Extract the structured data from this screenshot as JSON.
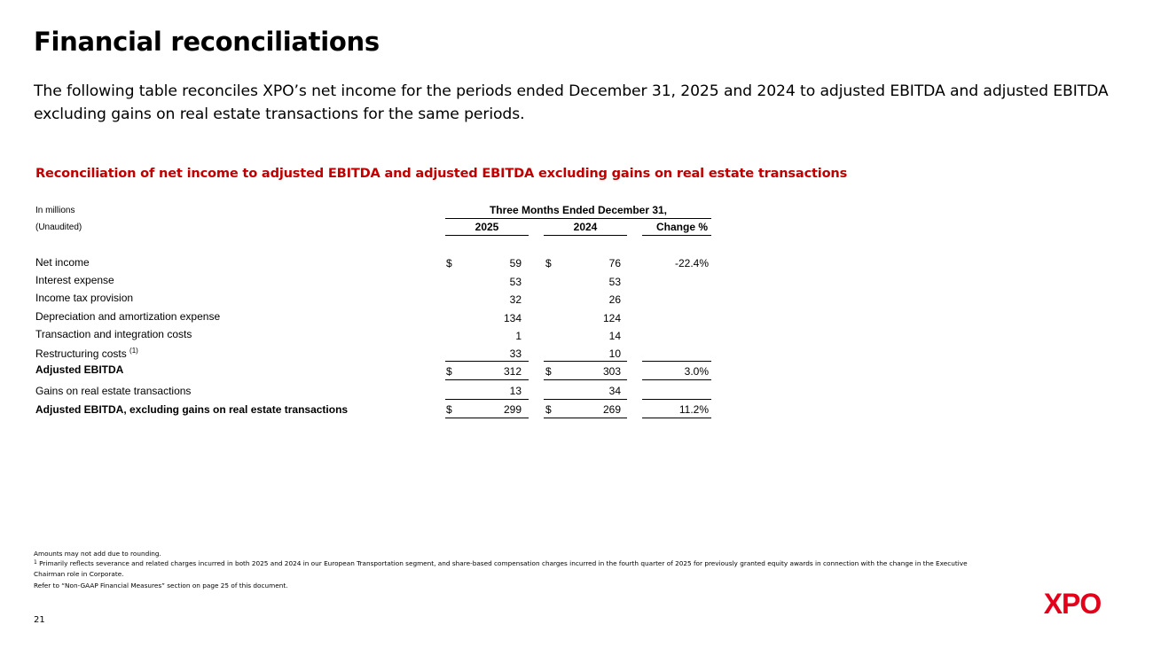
{
  "page": {
    "title": "Financial reconciliations",
    "intro": "The following table reconciles XPO’s net income for the periods ended December 31, 2025 and 2024 to adjusted EBITDA and adjusted EBITDA excluding gains on real estate transactions for the same periods.",
    "table_title": "Reconciliation of net income to adjusted EBITDA and adjusted EBITDA excluding gains on real estate transactions",
    "page_number": "21"
  },
  "table": {
    "units_label": "In millions",
    "unaudited_label": "(Unaudited)",
    "period_header": "Three Months Ended December 31,",
    "col_2025": "2025",
    "col_2024": "2024",
    "col_change": "Change %",
    "currency_symbol": "$",
    "rows": [
      {
        "label": "Net income",
        "v2025": "59",
        "v2024": "76",
        "change": "-22.4%"
      },
      {
        "label": "Interest expense",
        "v2025": "53",
        "v2024": "53",
        "change": ""
      },
      {
        "label": "Income tax provision",
        "v2025": "32",
        "v2024": "26",
        "change": ""
      },
      {
        "label": "Depreciation and amortization expense",
        "v2025": "134",
        "v2024": "124",
        "change": ""
      },
      {
        "label": "Transaction and integration costs",
        "v2025": "1",
        "v2024": "14",
        "change": ""
      },
      {
        "label": "Restructuring costs",
        "superscript": "(1)",
        "v2025": "33",
        "v2024": "10",
        "change": ""
      },
      {
        "label": "Adjusted EBITDA",
        "v2025": "312",
        "v2024": "303",
        "change": "3.0%"
      },
      {
        "label": "Gains on real estate transactions",
        "v2025": "13",
        "v2024": "34",
        "change": ""
      },
      {
        "label": "Adjusted EBITDA, excluding gains on real estate transactions",
        "v2025": "299",
        "v2024": "269",
        "change": "11.2%"
      }
    ]
  },
  "footnotes": {
    "rounding": "Amounts may not add due to rounding.",
    "note1_marker": "1",
    "note1_line1": "Primarily reflects severance and related charges incurred in both 2025 and 2024 in our European Transportation segment, and share-based compensation charges incurred in the fourth quarter of 2025 for previously granted equity awards in connection with the change in the Executive",
    "note1_line2": "Chairman role in Corporate.",
    "refer": "Refer to “Non-GAAP Financial Measures” section on page 25 of this document."
  },
  "logo": {
    "text": "XPO",
    "color": "#e4001b"
  },
  "colors": {
    "accent": "#c00000",
    "brand": "#e4001b"
  }
}
